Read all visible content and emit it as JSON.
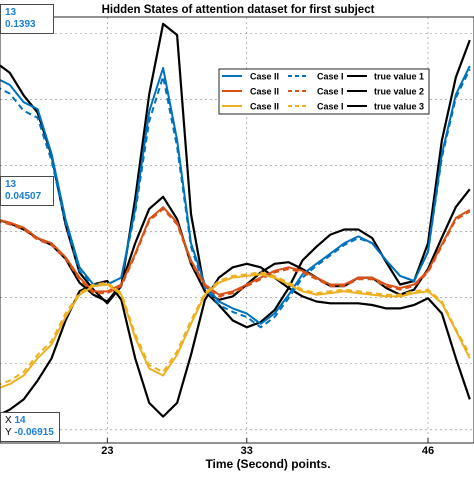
{
  "chart_data": {
    "type": "line",
    "title": "Hidden States of attention dataset for first subject",
    "xlabel": "Time (Second) points.",
    "ylabel": "",
    "xlim": [
      15.3,
      49.3
    ],
    "ylim": [
      -0.088,
      0.17
    ],
    "xticks": [
      23,
      33,
      46
    ],
    "grid": true,
    "legend_position": "top-right",
    "legend": {
      "row1": [
        "Case II",
        "Case I",
        "true value 1"
      ],
      "row2": [
        "Case II",
        "Case I",
        "true value 2"
      ],
      "row3": [
        "Case II",
        "Case I",
        "true value 3"
      ]
    },
    "colors": {
      "blue": "#0072BD",
      "orange": "#D95319",
      "yellow": "#EDB120",
      "black": "#000000",
      "accent": "#1a7fd6"
    },
    "x": [
      15,
      16,
      17,
      18,
      19,
      20,
      21,
      22,
      23,
      24,
      25,
      26,
      27,
      28,
      29,
      30,
      31,
      32,
      33,
      34,
      35,
      36,
      37,
      38,
      39,
      40,
      41,
      42,
      43,
      44,
      45,
      46,
      47,
      48,
      49
    ],
    "series": [
      {
        "name": "Case II",
        "color": "#0072BD",
        "dash": false,
        "values": [
          0.1331,
          0.1289,
          0.1184,
          0.1142,
          0.0871,
          0.0476,
          0.0184,
          0.008,
          0.008,
          0.0122,
          0.0538,
          0.1128,
          0.1391,
          0.0955,
          0.033,
          0.008,
          -0.0023,
          -0.0065,
          -0.0096,
          -0.0158,
          -0.0096,
          0.0017,
          0.0142,
          0.0205,
          0.0267,
          0.033,
          0.0371,
          0.033,
          0.0226,
          0.0132,
          0.0101,
          0.0278,
          0.0871,
          0.1231,
          0.1404
        ]
      },
      {
        "name": "Case I",
        "color": "#0072BD",
        "dash": true,
        "values": [
          0.1279,
          0.1236,
          0.1132,
          0.109,
          0.0829,
          0.0455,
          0.0163,
          0.007,
          0.008,
          0.0122,
          0.0517,
          0.1069,
          0.1339,
          0.0913,
          0.0309,
          0.0059,
          -0.0044,
          -0.0086,
          -0.0117,
          -0.0179,
          -0.0117,
          -0.0003,
          0.0122,
          0.0194,
          0.0257,
          0.0319,
          0.0361,
          0.033,
          0.0226,
          0.0132,
          0.0101,
          0.0278,
          0.085,
          0.1211,
          0.1383
        ]
      },
      {
        "name": "true value 1",
        "color": "#000000",
        "dash": false,
        "values": [
          0.1425,
          0.1362,
          0.1225,
          0.1121,
          0.0861,
          0.0444,
          0.0153,
          0.0049,
          -0.0034,
          0.007,
          0.06,
          0.1231,
          0.1658,
          0.1591,
          0.0507,
          0.0039,
          -0.0044,
          -0.0138,
          -0.0179,
          -0.0148,
          -0.0075,
          0.0059,
          0.0226,
          0.0309,
          0.0382,
          0.0413,
          0.0413,
          0.0361,
          0.0215,
          0.008,
          0.0101,
          0.033,
          0.0954,
          0.1336,
          0.156
        ]
      },
      {
        "name": "Case II",
        "color": "#D95319",
        "dash": false,
        "values": [
          0.0476,
          0.0455,
          0.0424,
          0.0361,
          0.033,
          0.0246,
          0.0122,
          0.0038,
          0.0038,
          0.008,
          0.0267,
          0.0476,
          0.0548,
          0.0455,
          0.0226,
          0.008,
          0.0018,
          0.0038,
          0.008,
          0.0122,
          0.0163,
          0.0184,
          0.0163,
          0.0122,
          0.008,
          0.008,
          0.0122,
          0.0122,
          0.008,
          0.0059,
          0.008,
          0.0163,
          0.0324,
          0.0483,
          0.0532
        ]
      },
      {
        "name": "Case I",
        "color": "#D95319",
        "dash": true,
        "values": [
          0.0465,
          0.0444,
          0.0413,
          0.0351,
          0.0319,
          0.0236,
          0.0112,
          0.0028,
          0.0028,
          0.007,
          0.0257,
          0.0465,
          0.0538,
          0.0444,
          0.0215,
          0.007,
          0.0008,
          0.0028,
          0.007,
          0.0112,
          0.0153,
          0.0174,
          0.0153,
          0.0112,
          0.007,
          0.007,
          0.0112,
          0.0112,
          0.007,
          0.0049,
          0.007,
          0.0153,
          0.0314,
          0.0473,
          0.0522
        ]
      },
      {
        "name": "true value 2",
        "color": "#000000",
        "dash": false,
        "values": [
          0.0476,
          0.0451,
          0.0413,
          0.0361,
          0.0319,
          0.0236,
          0.0091,
          0.0018,
          -0.0023,
          0.008,
          0.033,
          0.0538,
          0.0611,
          0.0476,
          0.0205,
          0.0039,
          -0.0013,
          0.0008,
          0.008,
          0.0153,
          0.0205,
          0.0215,
          0.0174,
          0.0122,
          0.007,
          0.007,
          0.0122,
          0.0122,
          0.0059,
          0.0018,
          0.0049,
          0.0174,
          0.0365,
          0.055,
          0.0657
        ]
      },
      {
        "name": "Case II",
        "color": "#EDB120",
        "dash": false,
        "values": [
          -0.0554,
          -0.0523,
          -0.0471,
          -0.0367,
          -0.0283,
          -0.0117,
          0.0018,
          0.007,
          0.008,
          0.0018,
          -0.0242,
          -0.0429,
          -0.0471,
          -0.0346,
          -0.0158,
          0.0018,
          0.0091,
          0.0122,
          0.0132,
          0.0142,
          0.0122,
          0.008,
          0.0039,
          0.0018,
          0.0028,
          0.0039,
          0.0028,
          0.0018,
          0.0008,
          0.0008,
          0.0028,
          0.0039,
          -0.0034,
          -0.02,
          -0.0367
        ]
      },
      {
        "name": "Case I",
        "color": "#EDB120",
        "dash": true,
        "values": [
          -0.0533,
          -0.0502,
          -0.045,
          -0.0346,
          -0.0263,
          -0.0096,
          0.0028,
          0.008,
          0.0091,
          0.0028,
          -0.0221,
          -0.0408,
          -0.045,
          -0.0325,
          -0.0138,
          0.0028,
          0.0101,
          0.0132,
          0.0142,
          0.0153,
          0.0132,
          0.0091,
          0.0049,
          0.0028,
          0.0039,
          0.0049,
          0.0039,
          0.0028,
          0.0018,
          0.0018,
          0.0039,
          0.0049,
          -0.0023,
          -0.019,
          -0.0346
        ]
      },
      {
        "name": "true value 3",
        "color": "#000000",
        "dash": false,
        "values": [
          -0.072,
          -0.0678,
          -0.0616,
          -0.0502,
          -0.0367,
          -0.0138,
          0.0039,
          0.008,
          0.0101,
          -0.0013,
          -0.0367,
          -0.0637,
          -0.072,
          -0.0637,
          -0.0346,
          -0.0013,
          0.0122,
          0.0184,
          0.0205,
          0.0184,
          0.0122,
          0.0059,
          0.0008,
          -0.0023,
          -0.0034,
          -0.0034,
          -0.0034,
          -0.0044,
          -0.0065,
          -0.0065,
          -0.0044,
          -0.0003,
          -0.0096,
          -0.0367,
          -0.0616
        ]
      }
    ]
  },
  "datatips": [
    {
      "x_label": "13",
      "y_label": "0.1393"
    },
    {
      "x_label": "13",
      "y_label": "0.04507"
    },
    {
      "x_prefix": "X",
      "x_label": "14",
      "y_prefix": "Y",
      "y_label": "-0.06915"
    }
  ]
}
